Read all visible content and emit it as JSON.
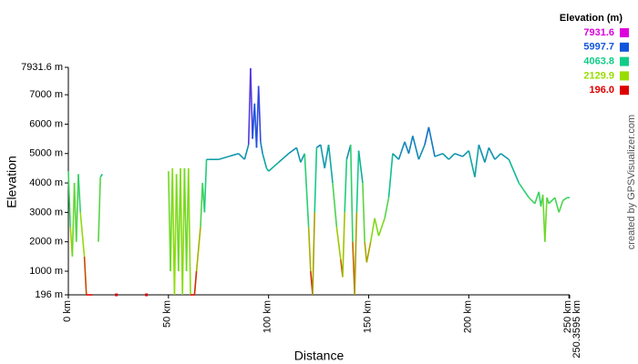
{
  "chart_data": {
    "type": "line",
    "xlabel": "Distance",
    "ylabel": "Elevation",
    "credit": "created by GPSVisualizer.com",
    "legend": {
      "title": "Elevation (m)",
      "position": "top-right",
      "stops": [
        {
          "value": 7931.6,
          "label": "7931.6",
          "color": "#dd00dd"
        },
        {
          "value": 5997.7,
          "label": "5997.7",
          "color": "#1155dd"
        },
        {
          "value": 4063.8,
          "label": "4063.8",
          "color": "#11cc88"
        },
        {
          "value": 2129.9,
          "label": "2129.9",
          "color": "#99dd00"
        },
        {
          "value": 196,
          "label": "196.0",
          "color": "#dd0000"
        }
      ]
    },
    "xlim": [
      0,
      250.3595
    ],
    "xticks": [
      {
        "value": 0,
        "label": "0 km"
      },
      {
        "value": 50,
        "label": "50 km"
      },
      {
        "value": 100,
        "label": "100 km"
      },
      {
        "value": 150,
        "label": "150 km"
      },
      {
        "value": 200,
        "label": "200 km"
      },
      {
        "value": 250,
        "label": "250 km"
      },
      {
        "value": 250.3595,
        "label": "250.3595 km"
      }
    ],
    "ylim": [
      196,
      7931.6
    ],
    "yticks": [
      {
        "value": 196,
        "label": "196 m"
      },
      {
        "value": 1000,
        "label": "1000 m"
      },
      {
        "value": 2000,
        "label": "2000 m"
      },
      {
        "value": 3000,
        "label": "3000 m"
      },
      {
        "value": 4000,
        "label": "4000 m"
      },
      {
        "value": 5000,
        "label": "5000 m"
      },
      {
        "value": 6000,
        "label": "6000 m"
      },
      {
        "value": 7000,
        "label": "7000 m"
      },
      {
        "value": 7931.6,
        "label": "7931.6 m"
      }
    ],
    "x": [
      0,
      1,
      2,
      3,
      4,
      5,
      6,
      8,
      9,
      12,
      13,
      15,
      16,
      17,
      20,
      24,
      30,
      39,
      45,
      50,
      51,
      52,
      53,
      54,
      55,
      56,
      57,
      58,
      59,
      60,
      61,
      63,
      64,
      66,
      67,
      68,
      69,
      70,
      75,
      80,
      85,
      88,
      90,
      91,
      92,
      93,
      94,
      95,
      96,
      97,
      99,
      100,
      105,
      110,
      114,
      116,
      118,
      120,
      121,
      122,
      123,
      124,
      126,
      128,
      130,
      132,
      134,
      136,
      137,
      138,
      139,
      141,
      142,
      143,
      144,
      145,
      147,
      148,
      149,
      151,
      153,
      155,
      158,
      160,
      162,
      165,
      168,
      170,
      172,
      175,
      178,
      180,
      183,
      187,
      190,
      193,
      197,
      200,
      203,
      205,
      208,
      210,
      213,
      216,
      220,
      225,
      230,
      233,
      235,
      236,
      237,
      238,
      239,
      240,
      243,
      245,
      247,
      249,
      250.3595
    ],
    "series": [
      {
        "values": [
          4400,
          2500,
          1500,
          4000,
          2000,
          4300,
          3000,
          1500,
          196,
          196,
          null,
          2000,
          4200,
          4300,
          null,
          196,
          null,
          196,
          null,
          4400,
          1000,
          4500,
          196,
          4300,
          1000,
          4500,
          196,
          4500,
          1000,
          4500,
          196,
          196,
          1000,
          2500,
          4000,
          3000,
          4800,
          4800,
          4800,
          4900,
          5000,
          4800,
          5300,
          7900,
          5500,
          6700,
          5200,
          7300,
          5400,
          5000,
          4500,
          4400,
          4700,
          5000,
          5200,
          4700,
          5000,
          2500,
          1000,
          196,
          3000,
          5200,
          5300,
          4500,
          5300,
          4000,
          2500,
          1400,
          800,
          3000,
          4800,
          5300,
          2000,
          196,
          3000,
          5100,
          4000,
          2000,
          1300,
          2000,
          2800,
          2200,
          2800,
          3500,
          5000,
          4800,
          5400,
          5000,
          5600,
          4800,
          5300,
          5900,
          4900,
          5000,
          4800,
          5000,
          4900,
          5100,
          4200,
          5300,
          4700,
          5200,
          4800,
          5000,
          4800,
          4000,
          3500,
          3300,
          3700,
          3200,
          3600,
          2000,
          3500,
          3300,
          3500,
          3000,
          3400,
          3500,
          3500
        ]
      }
    ]
  }
}
